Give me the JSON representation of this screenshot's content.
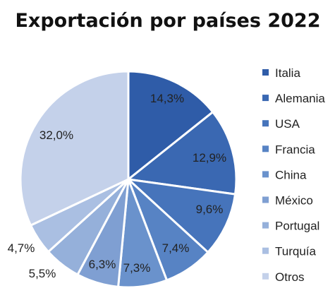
{
  "chart_data": {
    "type": "pie",
    "title": "Exportación por países 2022",
    "start_angle_deg": 0,
    "direction": "clockwise",
    "legend_position": "right",
    "slices": [
      {
        "label": "Italia",
        "value": 14.3,
        "value_label": "14,3%",
        "color": "#2f5ca8"
      },
      {
        "label": "Alemania",
        "value": 12.9,
        "value_label": "12,9%",
        "color": "#3a68b2"
      },
      {
        "label": "USA",
        "value": 9.6,
        "value_label": "9,6%",
        "color": "#4674bb"
      },
      {
        "label": "Francia",
        "value": 7.4,
        "value_label": "7,4%",
        "color": "#5783c4"
      },
      {
        "label": "China",
        "value": 7.3,
        "value_label": "7,3%",
        "color": "#6a92cc"
      },
      {
        "label": "México",
        "value": 6.3,
        "value_label": "6,3%",
        "color": "#7f9fd2"
      },
      {
        "label": "Portugal",
        "value": 5.5,
        "value_label": "5,5%",
        "color": "#95b0da"
      },
      {
        "label": "Turquía",
        "value": 4.7,
        "value_label": "4,7%",
        "color": "#aabfe2"
      },
      {
        "label": "Otros",
        "value": 32.0,
        "value_label": "32,0%",
        "color": "#c4d1ea"
      }
    ]
  }
}
